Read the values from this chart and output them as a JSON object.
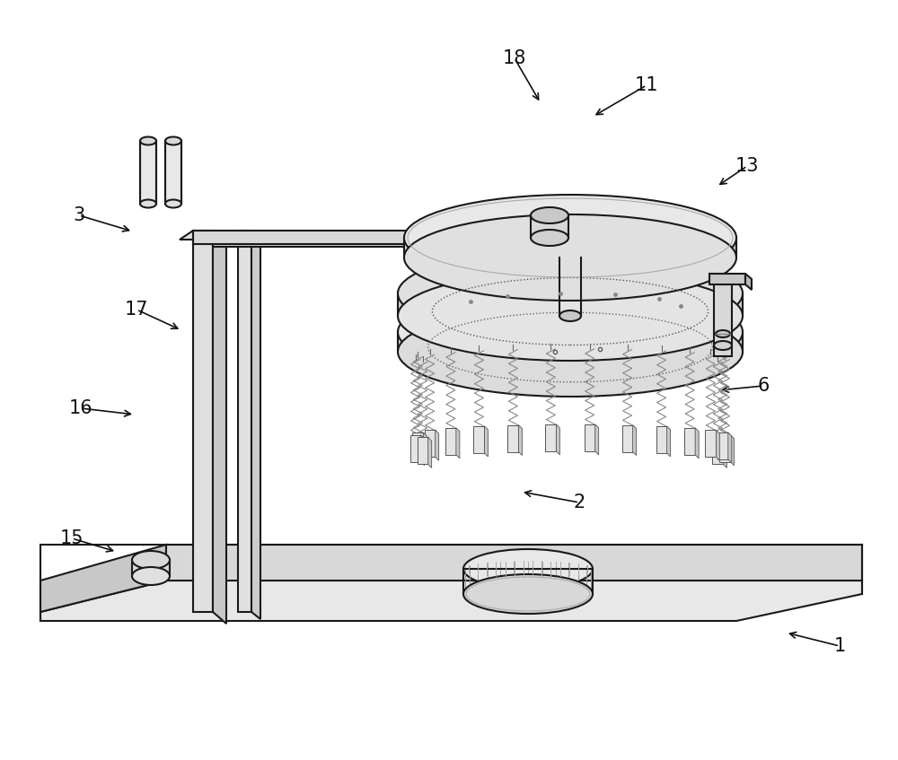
{
  "background_color": "#ffffff",
  "line_color": "#1a1a1a",
  "labels_corrected": [
    [
      "1",
      935,
      127,
      875,
      142
    ],
    [
      "2",
      645,
      287,
      580,
      299
    ],
    [
      "3",
      88,
      607,
      148,
      589
    ],
    [
      "6",
      850,
      417,
      800,
      412
    ],
    [
      "11",
      720,
      752,
      660,
      717
    ],
    [
      "13",
      832,
      662,
      798,
      639
    ],
    [
      "15",
      80,
      247,
      130,
      232
    ],
    [
      "16",
      90,
      392,
      150,
      385
    ],
    [
      "17",
      152,
      502,
      202,
      479
    ],
    [
      "18",
      573,
      782,
      602,
      732
    ]
  ]
}
